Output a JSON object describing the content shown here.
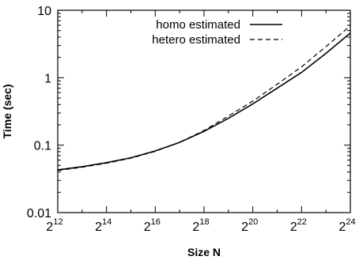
{
  "chart_data": {
    "type": "line",
    "xlabel": "Size N",
    "ylabel": "Time (sec)",
    "x_scale": "log2",
    "y_scale": "log10",
    "xlim": [
      "2^12",
      "2^24"
    ],
    "ylim": [
      0.01,
      10
    ],
    "x_ticks": [
      {
        "base": "2",
        "exp": "12"
      },
      {
        "base": "2",
        "exp": "14"
      },
      {
        "base": "2",
        "exp": "16"
      },
      {
        "base": "2",
        "exp": "18"
      },
      {
        "base": "2",
        "exp": "20"
      },
      {
        "base": "2",
        "exp": "22"
      },
      {
        "base": "2",
        "exp": "24"
      }
    ],
    "y_ticks": [
      "0.01",
      "0.1",
      "1",
      "10"
    ],
    "legend_position": "top-right",
    "x": [
      "2^12",
      "2^13",
      "2^14",
      "2^15",
      "2^16",
      "2^17",
      "2^18",
      "2^19",
      "2^20",
      "2^21",
      "2^22",
      "2^23",
      "2^24"
    ],
    "series": [
      {
        "name": "homo estimated",
        "style": "solid",
        "values": [
          0.043,
          0.048,
          0.055,
          0.065,
          0.082,
          0.11,
          0.16,
          0.25,
          0.41,
          0.7,
          1.2,
          2.3,
          4.6
        ]
      },
      {
        "name": "hetero estimated",
        "style": "dashed",
        "values": [
          0.042,
          0.047,
          0.054,
          0.064,
          0.081,
          0.11,
          0.165,
          0.27,
          0.45,
          0.8,
          1.45,
          2.9,
          5.9
        ]
      }
    ]
  }
}
